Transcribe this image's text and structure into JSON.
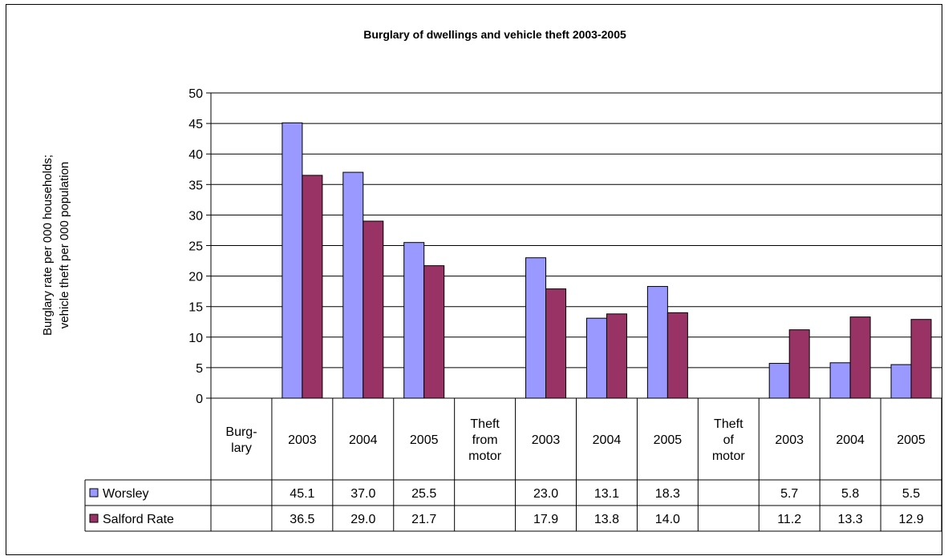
{
  "chart_data": {
    "type": "bar",
    "title": "Burglary of dwellings and vehicle theft 2003-2005",
    "ylabel_lines": [
      "Burglary rate per 000 households;",
      "vehicle theft per 000 population"
    ],
    "ylim": [
      0,
      50
    ],
    "yticks": [
      0,
      5,
      10,
      15,
      20,
      25,
      30,
      35,
      40,
      45,
      50
    ],
    "grid": true,
    "categories": [
      [
        "Burg-",
        "lary"
      ],
      [
        "2003"
      ],
      [
        "2004"
      ],
      [
        "2005"
      ],
      [
        "Theft",
        "from",
        "motor"
      ],
      [
        "2003"
      ],
      [
        "2004"
      ],
      [
        "2005"
      ],
      [
        "Theft",
        "of",
        "motor"
      ],
      [
        "2003"
      ],
      [
        "2004"
      ],
      [
        "2005"
      ]
    ],
    "series": [
      {
        "name": "Worsley",
        "color": "#9999ff",
        "values": [
          null,
          45.1,
          37.0,
          25.5,
          null,
          23.0,
          13.1,
          18.3,
          null,
          5.7,
          5.8,
          5.5
        ],
        "labels": [
          "",
          "45.1",
          "37.0",
          "25.5",
          "",
          "23.0",
          "13.1",
          "18.3",
          "",
          "5.7",
          "5.8",
          "5.5"
        ]
      },
      {
        "name": "Salford Rate",
        "color": "#993366",
        "values": [
          null,
          36.5,
          29.0,
          21.7,
          null,
          17.9,
          13.8,
          14.0,
          null,
          11.2,
          13.3,
          12.9
        ],
        "labels": [
          "",
          "36.5",
          "29.0",
          "21.7",
          "",
          "17.9",
          "13.8",
          "14.0",
          "",
          "11.2",
          "13.3",
          "12.9"
        ]
      }
    ],
    "legend": "data-table"
  }
}
